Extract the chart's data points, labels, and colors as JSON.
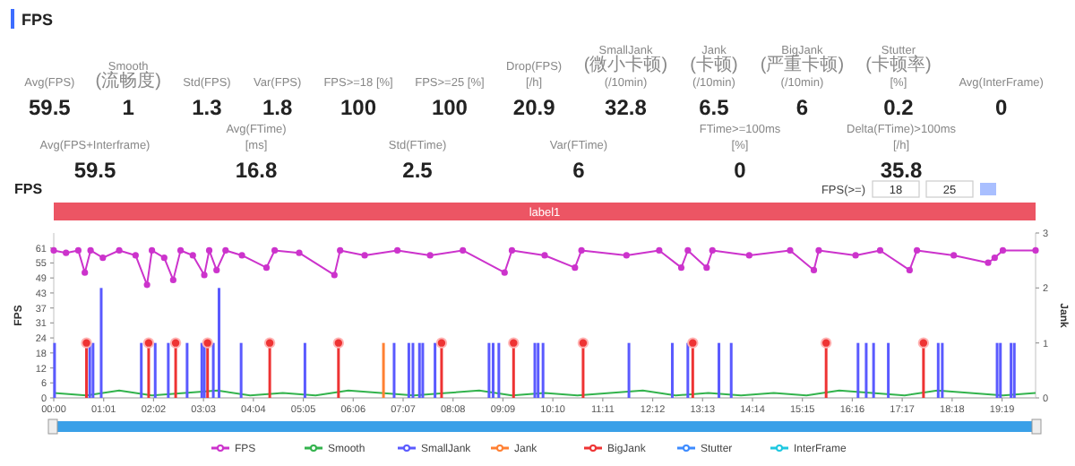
{
  "chart_data": [
    {
      "type": "other",
      "title": "FPS",
      "categories": [
        "Avg(FPS)",
        "Smooth(流畅度)",
        "Std(FPS)",
        "Var(FPS)",
        "FPS>=18 [%]",
        "FPS>=25 [%]",
        "Drop(FPS) [/h]",
        "SmallJank(微小卡顿)(/10min)",
        "Jank(卡顿)(/10min)",
        "BigJank(严重卡顿)(/10min)",
        "Stutter(卡顿率) [%]",
        "Avg(InterFrame)"
      ],
      "values": [
        59.5,
        1,
        1.3,
        1.8,
        100,
        100,
        20.9,
        32.8,
        6.5,
        6,
        0.2,
        0
      ],
      "data_labels": true
    },
    {
      "type": "other",
      "categories": [
        "Avg(FPS+Interframe)",
        "Avg(FTime) [ms]",
        "Std(FTime)",
        "Var(FTime)",
        "FTime>=100ms [%]",
        "Delta(FTime)>100ms [/h]"
      ],
      "values": [
        59.5,
        16.8,
        2.5,
        6,
        0,
        35.8
      ],
      "data_labels": true
    },
    {
      "type": "line",
      "title": "FPS",
      "ylabel": "FPS",
      "y2label": "Jank",
      "legend": "bottom",
      "annotations": [
        "label1",
        "FPS(>=)",
        "18",
        "25"
      ],
      "xlim": [
        0,
        1200
      ],
      "xticks": [
        {
          "value": 0,
          "label": "00:00"
        },
        {
          "value": 61,
          "label": "01:01"
        },
        {
          "value": 122,
          "label": "02:02"
        },
        {
          "value": 183,
          "label": "03:03"
        },
        {
          "value": 244,
          "label": "04:04"
        },
        {
          "value": 305,
          "label": "05:05"
        },
        {
          "value": 366,
          "label": "06:06"
        },
        {
          "value": 427,
          "label": "07:07"
        },
        {
          "value": 488,
          "label": "08:08"
        },
        {
          "value": 549,
          "label": "09:09"
        },
        {
          "value": 610,
          "label": "10:10"
        },
        {
          "value": 671,
          "label": "11:11"
        },
        {
          "value": 732,
          "label": "12:12"
        },
        {
          "value": 793,
          "label": "13:13"
        },
        {
          "value": 854,
          "label": "14:14"
        },
        {
          "value": 915,
          "label": "15:15"
        },
        {
          "value": 976,
          "label": "16:16"
        },
        {
          "value": 1037,
          "label": "17:17"
        },
        {
          "value": 1098,
          "label": "18:18"
        },
        {
          "value": 1159,
          "label": "19:19"
        }
      ],
      "ylim": [
        0,
        67.1
      ],
      "yticks": [
        0,
        {
          "value": 6.1,
          "label": "6"
        },
        {
          "value": 12.2,
          "label": "12"
        },
        {
          "value": 18.3,
          "label": "18"
        },
        {
          "value": 24.4,
          "label": "24"
        },
        {
          "value": 30.5,
          "label": "31"
        },
        {
          "value": 36.6,
          "label": "37"
        },
        {
          "value": 42.7,
          "label": "43"
        },
        {
          "value": 48.8,
          "label": "49"
        },
        {
          "value": 54.9,
          "label": "55"
        },
        61
      ],
      "y2lim": [
        0,
        3
      ],
      "y2ticks": [
        0,
        1,
        2,
        3
      ],
      "series": [
        {
          "name": "FPS",
          "color": "#cc33cc",
          "marker": "circle",
          "x": [
            0,
            15,
            30,
            38,
            45,
            60,
            80,
            100,
            114,
            120,
            135,
            146,
            155,
            170,
            184,
            190,
            199,
            210,
            230,
            260,
            270,
            300,
            343,
            350,
            380,
            420,
            460,
            500,
            551,
            560,
            600,
            637,
            645,
            700,
            740,
            767,
            775,
            798,
            805,
            850,
            900,
            929,
            935,
            980,
            1010,
            1046,
            1055,
            1100,
            1142,
            1150,
            1160,
            1200
          ],
          "values": [
            60,
            59,
            60,
            51,
            60,
            57,
            60,
            58,
            46,
            60,
            57,
            48,
            60,
            58,
            50,
            60,
            52,
            60,
            58,
            53,
            60,
            59,
            50,
            60,
            58,
            60,
            58,
            60,
            51,
            60,
            58,
            53,
            60,
            58,
            60,
            53,
            60,
            53,
            60,
            58,
            60,
            52,
            60,
            58,
            60,
            52,
            60,
            58,
            55,
            57,
            60,
            60
          ]
        },
        {
          "name": "Smooth",
          "color": "#33b34d",
          "x": [
            0,
            40,
            80,
            120,
            160,
            200,
            240,
            280,
            320,
            360,
            400,
            440,
            480,
            520,
            560,
            600,
            640,
            680,
            720,
            760,
            800,
            840,
            880,
            920,
            960,
            1000,
            1040,
            1080,
            1120,
            1160,
            1200
          ],
          "values": [
            2,
            1,
            3,
            1,
            2,
            3,
            1,
            2,
            1,
            3,
            2,
            1,
            2,
            3,
            1,
            2,
            1,
            2,
            3,
            1,
            2,
            1,
            2,
            1,
            3,
            2,
            1,
            3,
            2,
            1,
            2
          ]
        },
        {
          "name": "SmallJank",
          "color": "#5a5aff",
          "type": "bar",
          "axis": "y2",
          "x": [
            1,
            44,
            48,
            58,
            107,
            124,
            140,
            163,
            181,
            184,
            195,
            202,
            229,
            307,
            416,
            434,
            439,
            447,
            451,
            466,
            532,
            537,
            544,
            588,
            592,
            598,
            703,
            756,
            775,
            813,
            828,
            983,
            993,
            1002,
            1020,
            1081,
            1086,
            1153,
            1157,
            1170,
            1174
          ],
          "values": [
            1,
            1,
            1,
            2,
            1,
            1,
            1,
            1,
            1,
            1,
            1,
            2,
            1,
            1,
            1,
            1,
            1,
            1,
            1,
            1,
            1,
            1,
            1,
            1,
            1,
            1,
            1,
            1,
            1,
            1,
            1,
            1,
            1,
            1,
            1,
            1,
            1,
            1,
            1,
            1,
            1
          ]
        },
        {
          "name": "Jank",
          "color": "#ff8033",
          "type": "bar",
          "axis": "y2",
          "x": [
            403
          ],
          "values": [
            1
          ]
        },
        {
          "name": "BigJank",
          "color": "#ee3333",
          "type": "lollipop",
          "axis": "y2",
          "x": [
            40,
            116,
            149,
            188,
            264,
            348,
            474,
            562,
            647,
            781,
            944,
            1063
          ],
          "values": [
            1,
            1,
            1,
            1,
            1,
            1,
            1,
            1,
            1,
            1,
            1,
            1
          ]
        },
        {
          "name": "Stutter",
          "color": "#3d8bff",
          "type": "line"
        },
        {
          "name": "InterFrame",
          "color": "#1fc8e0",
          "type": "line"
        }
      ]
    }
  ]
}
